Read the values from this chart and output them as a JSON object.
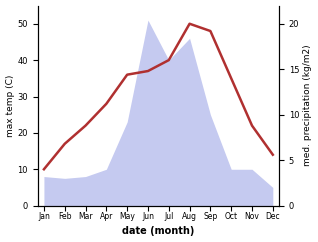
{
  "months": [
    "Jan",
    "Feb",
    "Mar",
    "Apr",
    "May",
    "Jun",
    "Jul",
    "Aug",
    "Sep",
    "Oct",
    "Nov",
    "Dec"
  ],
  "temperature": [
    10,
    17,
    22,
    28,
    36,
    37,
    40,
    50,
    48,
    35,
    22,
    14
  ],
  "precipitation": [
    8,
    7.5,
    8,
    10,
    23,
    51,
    40,
    46,
    25,
    10,
    10,
    5
  ],
  "temp_color": "#b03030",
  "precip_fill_color": "#c5caf0",
  "temp_ylim": [
    0,
    55
  ],
  "precip_ylim": [
    0,
    55
  ],
  "temp_yticks": [
    0,
    10,
    20,
    30,
    40,
    50
  ],
  "precip_yticks_vals": [
    0,
    5,
    10,
    15,
    20
  ],
  "precip_yticks_pos": [
    0,
    12.5,
    25,
    37.5,
    50
  ],
  "xlabel": "date (month)",
  "ylabel_left": "max temp (C)",
  "ylabel_right": "med. precipitation (kg/m2)",
  "figsize": [
    3.18,
    2.42
  ],
  "dpi": 100
}
